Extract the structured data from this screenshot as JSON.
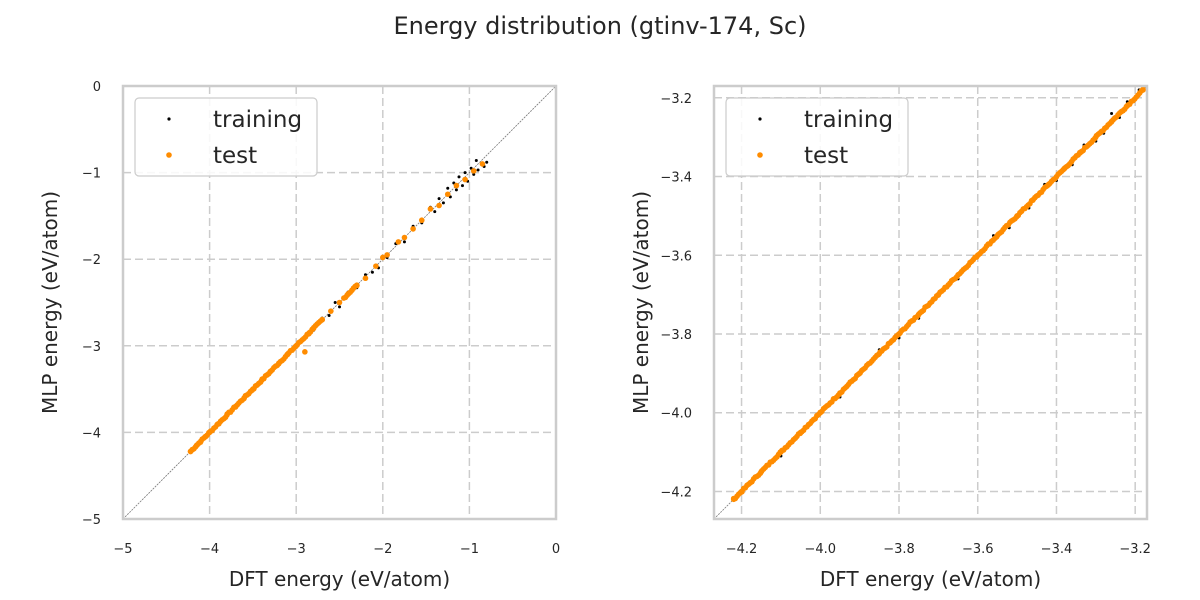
{
  "figure": {
    "title": "Energy distribution (gtinv-174, Sc)"
  },
  "chart_data": [
    {
      "type": "scatter",
      "xlabel": "DFT energy (eV/atom)",
      "ylabel": "MLP energy (eV/atom)",
      "xlim": [
        -5,
        0
      ],
      "ylim": [
        -5,
        0
      ],
      "xticks": [
        "−5",
        "−4",
        "−3",
        "−2",
        "−1",
        "0"
      ],
      "yticks": [
        "−5",
        "−4",
        "−3",
        "−2",
        "−1",
        "0"
      ],
      "grid": true,
      "diagonal": true,
      "legend_position": "top-left",
      "series": [
        {
          "name": "training",
          "color": "#000000",
          "marker_size": "small",
          "points": [
            [
              -0.8,
              -0.88
            ],
            [
              -0.83,
              -0.93
            ],
            [
              -0.86,
              -0.9
            ],
            [
              -0.9,
              -0.97
            ],
            [
              -0.92,
              -0.86
            ],
            [
              -0.95,
              -1.02
            ],
            [
              -0.98,
              -0.95
            ],
            [
              -1.02,
              -1.1
            ],
            [
              -1.05,
              -1.0
            ],
            [
              -1.08,
              -1.15
            ],
            [
              -1.12,
              -1.05
            ],
            [
              -1.15,
              -1.2
            ],
            [
              -1.18,
              -1.12
            ],
            [
              -1.22,
              -1.28
            ],
            [
              -1.25,
              -1.18
            ],
            [
              -1.3,
              -1.35
            ],
            [
              -1.35,
              -1.3
            ],
            [
              -1.4,
              -1.45
            ],
            [
              -1.45,
              -1.4
            ],
            [
              -1.55,
              -1.58
            ],
            [
              -1.65,
              -1.62
            ],
            [
              -1.75,
              -1.8
            ],
            [
              -1.85,
              -1.82
            ],
            [
              -1.95,
              -1.98
            ],
            [
              -2.05,
              -2.1
            ],
            [
              -2.12,
              -2.15
            ],
            [
              -2.2,
              -2.18
            ],
            [
              -2.3,
              -2.33
            ],
            [
              -2.4,
              -2.38
            ],
            [
              -2.5,
              -2.55
            ],
            [
              -2.55,
              -2.5
            ],
            [
              -2.62,
              -2.65
            ],
            [
              -2.7,
              -2.68
            ],
            [
              -2.8,
              -2.82
            ],
            [
              -2.9,
              -2.9
            ],
            [
              -3.0,
              -3.02
            ],
            [
              -3.1,
              -3.08
            ],
            [
              -3.25,
              -3.25
            ],
            [
              -3.4,
              -3.4
            ],
            [
              -3.55,
              -3.55
            ],
            [
              -3.7,
              -3.7
            ],
            [
              -3.85,
              -3.85
            ],
            [
              -4.0,
              -4.0
            ],
            [
              -4.1,
              -4.1
            ],
            [
              -4.2,
              -4.2
            ]
          ]
        },
        {
          "name": "test",
          "color": "#ff8c00",
          "marker_size": "medium",
          "points": [
            [
              -0.85,
              -0.9
            ],
            [
              -0.95,
              -0.98
            ],
            [
              -1.05,
              -1.08
            ],
            [
              -1.15,
              -1.15
            ],
            [
              -1.25,
              -1.25
            ],
            [
              -1.35,
              -1.38
            ],
            [
              -1.45,
              -1.42
            ],
            [
              -1.55,
              -1.55
            ],
            [
              -1.65,
              -1.65
            ],
            [
              -1.75,
              -1.75
            ],
            [
              -1.82,
              -1.8
            ],
            [
              -1.95,
              -1.95
            ],
            [
              -2.0,
              -1.98
            ],
            [
              -2.08,
              -2.08
            ],
            [
              -2.2,
              -2.22
            ],
            [
              -2.3,
              -2.3
            ],
            [
              -2.4,
              -2.4
            ],
            [
              -2.5,
              -2.5
            ],
            [
              -2.6,
              -2.6
            ],
            [
              -2.7,
              -2.7
            ],
            [
              -2.8,
              -2.8
            ],
            [
              -2.85,
              -2.85
            ],
            [
              -2.9,
              -3.07
            ],
            [
              -3.0,
              -3.0
            ],
            [
              -3.1,
              -3.1
            ],
            [
              -3.2,
              -3.2
            ],
            [
              -3.3,
              -3.3
            ],
            [
              -3.4,
              -3.4
            ],
            [
              -3.5,
              -3.5
            ],
            [
              -3.6,
              -3.6
            ],
            [
              -3.7,
              -3.7
            ],
            [
              -3.8,
              -3.8
            ],
            [
              -3.9,
              -3.9
            ],
            [
              -4.0,
              -4.0
            ],
            [
              -4.05,
              -4.05
            ],
            [
              -4.1,
              -4.1
            ],
            [
              -4.15,
              -4.15
            ],
            [
              -4.2,
              -4.2
            ],
            [
              -4.22,
              -4.22
            ]
          ],
          "dense_segments": [
            [
              -4.22,
              -2.7
            ],
            [
              -2.45,
              -2.3
            ]
          ]
        }
      ]
    },
    {
      "type": "scatter",
      "xlabel": "DFT energy (eV/atom)",
      "ylabel": "MLP energy (eV/atom)",
      "xlim": [
        -4.27,
        -3.17
      ],
      "ylim": [
        -4.27,
        -3.17
      ],
      "xticks": [
        "−4.2",
        "−4.0",
        "−3.8",
        "−3.6",
        "−3.4",
        "−3.2"
      ],
      "yticks": [
        "−4.2",
        "−4.0",
        "−3.8",
        "−3.6",
        "−3.4",
        "−3.2"
      ],
      "grid": true,
      "diagonal": true,
      "legend_position": "top-left",
      "series": [
        {
          "name": "training",
          "color": "#000000",
          "marker_size": "small",
          "points": [
            [
              -3.19,
              -3.18
            ],
            [
              -3.2,
              -3.2
            ],
            [
              -3.22,
              -3.21
            ],
            [
              -3.24,
              -3.25
            ],
            [
              -3.26,
              -3.24
            ],
            [
              -3.28,
              -3.29
            ],
            [
              -3.3,
              -3.31
            ],
            [
              -3.33,
              -3.32
            ],
            [
              -3.36,
              -3.37
            ],
            [
              -3.4,
              -3.41
            ],
            [
              -3.43,
              -3.42
            ],
            [
              -3.47,
              -3.48
            ],
            [
              -3.52,
              -3.53
            ],
            [
              -3.56,
              -3.55
            ],
            [
              -3.6,
              -3.6
            ],
            [
              -3.65,
              -3.66
            ],
            [
              -3.7,
              -3.7
            ],
            [
              -3.75,
              -3.76
            ],
            [
              -3.8,
              -3.81
            ],
            [
              -3.85,
              -3.84
            ],
            [
              -3.9,
              -3.9
            ],
            [
              -3.95,
              -3.96
            ],
            [
              -4.0,
              -4.0
            ],
            [
              -4.05,
              -4.05
            ],
            [
              -4.1,
              -4.11
            ],
            [
              -4.15,
              -4.15
            ],
            [
              -4.2,
              -4.2
            ],
            [
              -4.22,
              -4.22
            ]
          ]
        },
        {
          "name": "test",
          "color": "#ff8c00",
          "marker_size": "medium",
          "points": [
            [
              -3.18,
              -3.18
            ],
            [
              -3.22,
              -3.22
            ],
            [
              -3.26,
              -3.26
            ],
            [
              -3.3,
              -3.3
            ],
            [
              -3.34,
              -3.34
            ],
            [
              -3.38,
              -3.38
            ],
            [
              -3.42,
              -3.42
            ],
            [
              -3.46,
              -3.46
            ],
            [
              -3.5,
              -3.5
            ],
            [
              -3.55,
              -3.55
            ],
            [
              -3.6,
              -3.6
            ],
            [
              -3.65,
              -3.65
            ],
            [
              -3.7,
              -3.7
            ],
            [
              -3.75,
              -3.75
            ],
            [
              -3.8,
              -3.8
            ],
            [
              -3.85,
              -3.85
            ],
            [
              -3.9,
              -3.9
            ],
            [
              -3.95,
              -3.95
            ],
            [
              -4.0,
              -4.0
            ],
            [
              -4.05,
              -4.05
            ],
            [
              -4.1,
              -4.1
            ],
            [
              -4.15,
              -4.15
            ],
            [
              -4.2,
              -4.2
            ],
            [
              -4.22,
              -4.22
            ]
          ],
          "dense_segments": [
            [
              -4.22,
              -3.18
            ]
          ]
        }
      ]
    }
  ]
}
